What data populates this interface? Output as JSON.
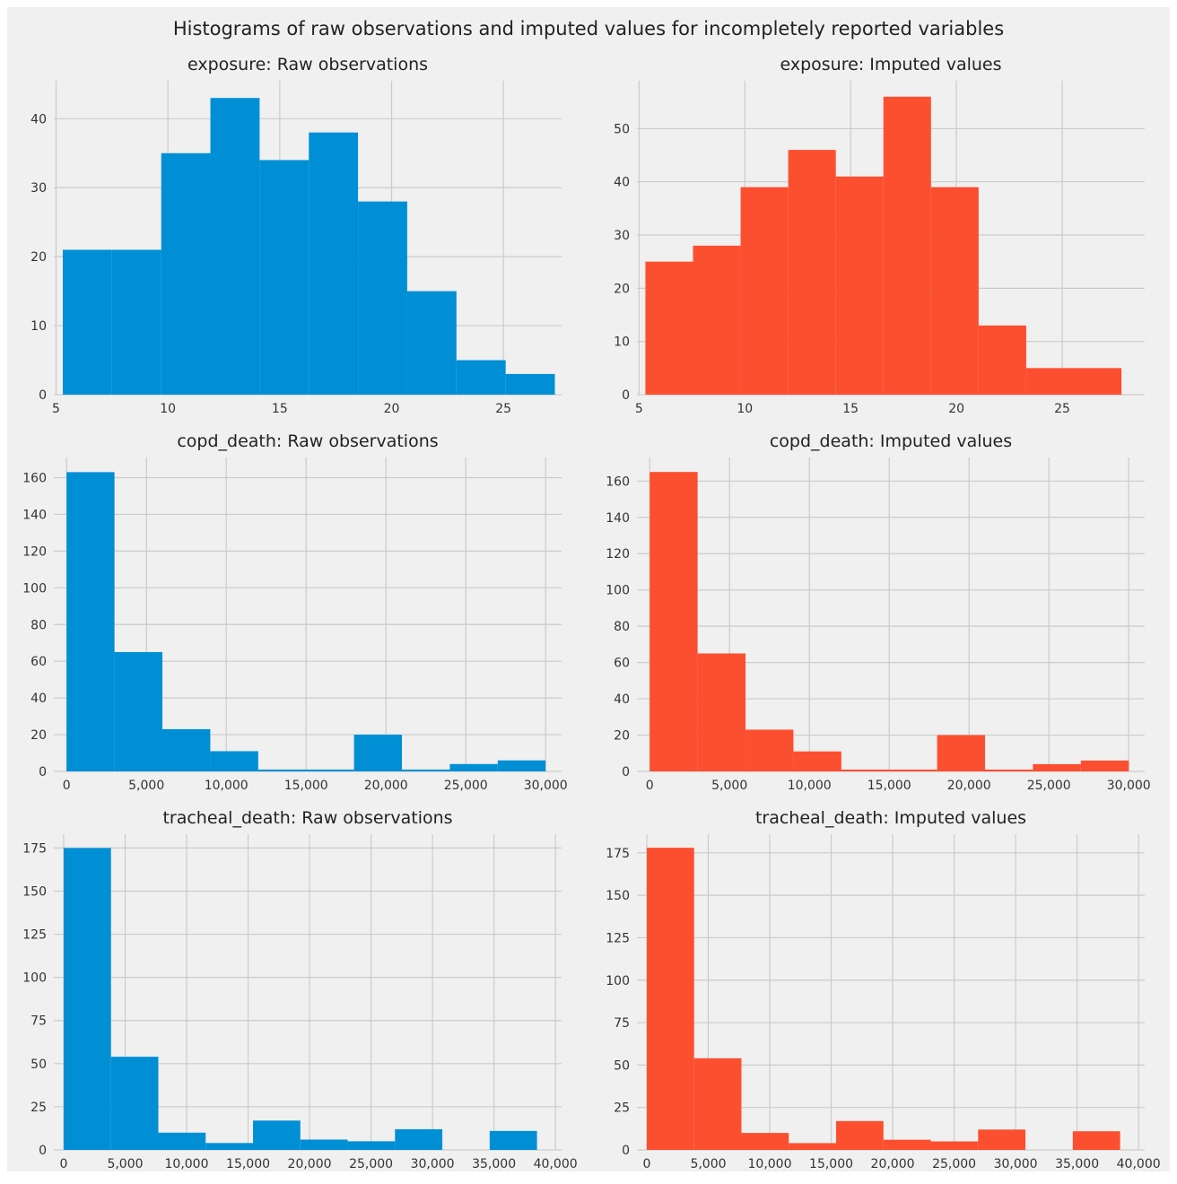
{
  "figure_title": "Histograms of raw observations and imputed values for incompletely reported variables",
  "colors": {
    "raw": "#008fd5",
    "imputed": "#fc4f30",
    "grid": "#cbcbcb",
    "background": "#f0f0f0"
  },
  "chart_data": [
    {
      "type": "bar",
      "title": "exposure: Raw observations",
      "color_key": "raw",
      "bin_edges": [
        5.3,
        7.5,
        9.7,
        11.9,
        14.1,
        16.3,
        18.5,
        20.7,
        22.9,
        25.1,
        27.3
      ],
      "values": [
        21,
        21,
        35,
        43,
        34,
        38,
        28,
        15,
        5,
        3
      ],
      "xlim": [
        4.9,
        27.6
      ],
      "ylim": [
        0,
        45.5
      ],
      "xticks": [
        5,
        10,
        15,
        20,
        25
      ],
      "xtick_labels": [
        "5",
        "10",
        "15",
        "20",
        "25"
      ],
      "yticks": [
        0,
        10,
        20,
        30,
        40
      ],
      "ytick_labels": [
        "0",
        "10",
        "20",
        "30",
        "40"
      ]
    },
    {
      "type": "bar",
      "title": "exposure: Imputed values",
      "color_key": "imputed",
      "bin_edges": [
        5.3,
        7.55,
        9.8,
        12.05,
        14.3,
        16.55,
        18.8,
        21.05,
        23.3,
        25.55,
        27.8
      ],
      "values": [
        25,
        28,
        39,
        46,
        41,
        56,
        39,
        13,
        5,
        5
      ],
      "xlim": [
        4.9,
        28.9
      ],
      "ylim": [
        0,
        59
      ],
      "xticks": [
        5,
        10,
        15,
        20,
        25
      ],
      "xtick_labels": [
        "5",
        "10",
        "15",
        "20",
        "25"
      ],
      "yticks": [
        0,
        10,
        20,
        30,
        40,
        50
      ],
      "ytick_labels": [
        "0",
        "10",
        "20",
        "30",
        "40",
        "50"
      ]
    },
    {
      "type": "bar",
      "title": "copd_death: Raw observations",
      "color_key": "raw",
      "bin_edges": [
        0,
        3000,
        6000,
        9000,
        12000,
        15000,
        18000,
        21000,
        24000,
        27000,
        30000
      ],
      "values": [
        163,
        65,
        23,
        11,
        1,
        1,
        20,
        1,
        4,
        6
      ],
      "xlim": [
        -800,
        31000
      ],
      "ylim": [
        0,
        171
      ],
      "xticks": [
        0,
        5000,
        10000,
        15000,
        20000,
        25000,
        30000
      ],
      "xtick_labels": [
        "0",
        "5,000",
        "10,000",
        "15,000",
        "20,000",
        "25,000",
        "30,000"
      ],
      "yticks": [
        0,
        20,
        40,
        60,
        80,
        100,
        120,
        140,
        160
      ],
      "ytick_labels": [
        "0",
        "20",
        "40",
        "60",
        "80",
        "100",
        "120",
        "140",
        "160"
      ]
    },
    {
      "type": "bar",
      "title": "copd_death: Imputed values",
      "color_key": "imputed",
      "bin_edges": [
        0,
        3000,
        6000,
        9000,
        12000,
        15000,
        18000,
        21000,
        24000,
        27000,
        30000
      ],
      "values": [
        165,
        65,
        23,
        11,
        1,
        1,
        20,
        1,
        4,
        6
      ],
      "xlim": [
        -800,
        31000
      ],
      "ylim": [
        0,
        173
      ],
      "xticks": [
        0,
        5000,
        10000,
        15000,
        20000,
        25000,
        30000
      ],
      "xtick_labels": [
        "0",
        "5,000",
        "10,000",
        "15,000",
        "20,000",
        "25,000",
        "30,000"
      ],
      "yticks": [
        0,
        20,
        40,
        60,
        80,
        100,
        120,
        140,
        160
      ],
      "ytick_labels": [
        "0",
        "20",
        "40",
        "60",
        "80",
        "100",
        "120",
        "140",
        "160"
      ]
    },
    {
      "type": "bar",
      "title": "tracheal_death: Raw observations",
      "color_key": "raw",
      "bin_edges": [
        0,
        3850,
        7700,
        11550,
        15400,
        19250,
        23100,
        26950,
        30800,
        34650,
        38500
      ],
      "values": [
        175,
        54,
        10,
        4,
        17,
        6,
        5,
        12,
        0,
        11
      ],
      "xlim": [
        -800,
        40500
      ],
      "ylim": [
        0,
        183
      ],
      "xticks": [
        0,
        5000,
        10000,
        15000,
        20000,
        25000,
        30000,
        35000,
        40000
      ],
      "xtick_labels": [
        "0",
        "5,000",
        "10,000",
        "15,000",
        "20,000",
        "25,000",
        "30,000",
        "35,000",
        "40,000"
      ],
      "yticks": [
        0,
        25,
        50,
        75,
        100,
        125,
        150,
        175
      ],
      "ytick_labels": [
        "0",
        "25",
        "50",
        "75",
        "100",
        "125",
        "150",
        "175"
      ]
    },
    {
      "type": "bar",
      "title": "tracheal_death: Imputed values",
      "color_key": "imputed",
      "bin_edges": [
        0,
        3850,
        7700,
        11550,
        15400,
        19250,
        23100,
        26950,
        30800,
        34650,
        38500
      ],
      "values": [
        178,
        54,
        10,
        4,
        17,
        6,
        5,
        12,
        0,
        11
      ],
      "xlim": [
        -800,
        40500
      ],
      "ylim": [
        0,
        186
      ],
      "xticks": [
        0,
        5000,
        10000,
        15000,
        20000,
        25000,
        30000,
        35000,
        40000
      ],
      "xtick_labels": [
        "0",
        "5,000",
        "10,000",
        "15,000",
        "20,000",
        "25,000",
        "30,000",
        "35,000",
        "40,000"
      ],
      "yticks": [
        0,
        25,
        50,
        75,
        100,
        125,
        150,
        175
      ],
      "ytick_labels": [
        "0",
        "25",
        "50",
        "75",
        "100",
        "125",
        "150",
        "175"
      ]
    }
  ]
}
